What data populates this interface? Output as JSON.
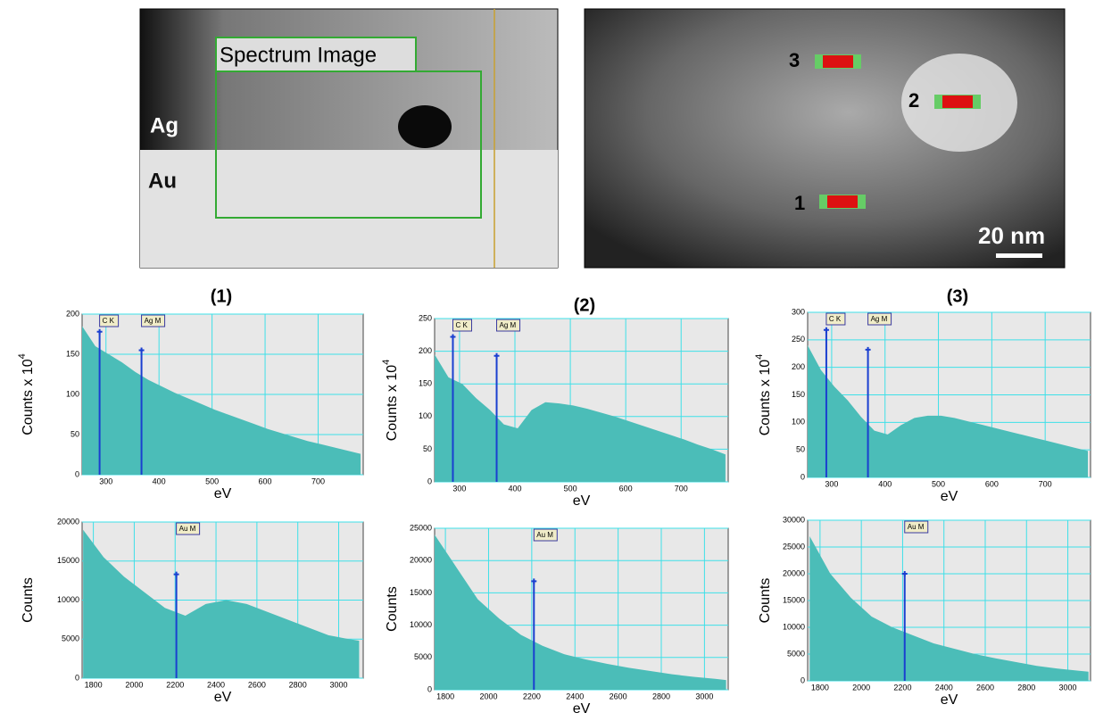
{
  "images": {
    "box_label": "Spectrum Image",
    "ag": "Ag",
    "au": "Au",
    "points": [
      "1",
      "2",
      "3"
    ],
    "scale_bar": "20 nm"
  },
  "chart_data": [
    {
      "type": "area",
      "title": "(1)",
      "ylabel": "Counts x 10",
      "ylabel_sup": "4",
      "xlabel": "eV",
      "color": "#4bbdb8",
      "grid": true,
      "x": [
        255,
        280,
        305,
        330,
        355,
        380,
        405,
        430,
        455,
        480,
        505,
        530,
        555,
        580,
        605,
        630,
        655,
        680,
        705,
        730,
        755,
        780
      ],
      "values": [
        185,
        160,
        150,
        140,
        128,
        118,
        110,
        102,
        95,
        88,
        81,
        75,
        69,
        63,
        57,
        52,
        47,
        42,
        38,
        34,
        30,
        26
      ],
      "xlim": [
        255,
        785
      ],
      "xticks": [
        300,
        400,
        500,
        600,
        700
      ],
      "ylim": [
        0,
        200
      ],
      "yticks": [
        0,
        50,
        100,
        150,
        200
      ],
      "markers": [
        {
          "label": "C K",
          "x": 288,
          "y": 178
        },
        {
          "label": "Ag M",
          "x": 367,
          "y": 155
        }
      ]
    },
    {
      "type": "area",
      "title": "(2)",
      "ylabel": "Counts x 10",
      "ylabel_sup": "4",
      "xlabel": "eV",
      "color": "#4bbdb8",
      "grid": true,
      "x": [
        255,
        280,
        305,
        330,
        355,
        380,
        405,
        430,
        455,
        480,
        505,
        530,
        555,
        580,
        605,
        630,
        655,
        680,
        705,
        730,
        755,
        780
      ],
      "values": [
        195,
        160,
        150,
        128,
        110,
        88,
        82,
        110,
        122,
        120,
        117,
        112,
        106,
        100,
        93,
        86,
        79,
        72,
        65,
        57,
        50,
        42
      ],
      "xlim": [
        255,
        785
      ],
      "xticks": [
        300,
        400,
        500,
        600,
        700
      ],
      "ylim": [
        0,
        250
      ],
      "yticks": [
        0,
        50,
        100,
        150,
        200,
        250
      ],
      "markers": [
        {
          "label": "C K",
          "x": 288,
          "y": 222
        },
        {
          "label": "Ag M",
          "x": 367,
          "y": 193
        }
      ]
    },
    {
      "type": "area",
      "title": "(3)",
      "ylabel": "Counts x 10",
      "ylabel_sup": "4",
      "xlabel": "eV",
      "color": "#4bbdb8",
      "grid": true,
      "x": [
        255,
        280,
        305,
        330,
        355,
        380,
        405,
        430,
        455,
        480,
        505,
        530,
        555,
        580,
        605,
        630,
        655,
        680,
        705,
        730,
        755,
        780
      ],
      "values": [
        240,
        195,
        165,
        140,
        110,
        85,
        78,
        95,
        108,
        112,
        112,
        108,
        102,
        96,
        90,
        84,
        78,
        72,
        66,
        60,
        54,
        48
      ],
      "xlim": [
        255,
        785
      ],
      "xticks": [
        300,
        400,
        500,
        600,
        700
      ],
      "ylim": [
        0,
        300
      ],
      "yticks": [
        0,
        50,
        100,
        150,
        200,
        250,
        300
      ],
      "markers": [
        {
          "label": "C K",
          "x": 290,
          "y": 268
        },
        {
          "label": "Ag M",
          "x": 368,
          "y": 232
        }
      ]
    },
    {
      "type": "area",
      "ylabel": "Counts",
      "xlabel": "eV",
      "color": "#4bbdb8",
      "grid": true,
      "x": [
        1750,
        1850,
        1950,
        2050,
        2150,
        2250,
        2350,
        2450,
        2550,
        2650,
        2750,
        2850,
        2950,
        3050,
        3100
      ],
      "values": [
        19000,
        15500,
        13000,
        11000,
        9000,
        8000,
        9500,
        10000,
        9500,
        8500,
        7500,
        6500,
        5500,
        5000,
        4800
      ],
      "xlim": [
        1745,
        3120
      ],
      "xticks": [
        1800,
        2000,
        2200,
        2400,
        2600,
        2800,
        3000
      ],
      "ylim": [
        0,
        20000
      ],
      "yticks": [
        0,
        5000,
        10000,
        15000,
        20000
      ],
      "markers": [
        {
          "label": "Au M",
          "x": 2206,
          "y": 13300
        }
      ]
    },
    {
      "type": "area",
      "ylabel": "Counts",
      "xlabel": "eV",
      "color": "#4bbdb8",
      "grid": true,
      "x": [
        1750,
        1850,
        1950,
        2050,
        2150,
        2250,
        2350,
        2450,
        2550,
        2650,
        2750,
        2850,
        2950,
        3050,
        3100
      ],
      "values": [
        24000,
        19000,
        14000,
        11000,
        8500,
        6800,
        5500,
        4700,
        4000,
        3400,
        2900,
        2400,
        2000,
        1700,
        1500
      ],
      "xlim": [
        1750,
        3110
      ],
      "xticks": [
        1800,
        2000,
        2200,
        2400,
        2600,
        2800,
        3000
      ],
      "ylim": [
        0,
        25000
      ],
      "yticks": [
        0,
        5000,
        10000,
        15000,
        20000,
        25000
      ],
      "markers": [
        {
          "label": "Au M",
          "x": 2210,
          "y": 16800
        }
      ]
    },
    {
      "type": "area",
      "ylabel": "Counts",
      "xlabel": "eV",
      "color": "#4bbdb8",
      "grid": true,
      "x": [
        1750,
        1850,
        1950,
        2050,
        2150,
        2250,
        2350,
        2450,
        2550,
        2650,
        2750,
        2850,
        2950,
        3050,
        3100
      ],
      "values": [
        27000,
        20000,
        15500,
        12000,
        10000,
        8500,
        7000,
        6000,
        5000,
        4200,
        3500,
        2800,
        2300,
        1900,
        1700
      ],
      "xlim": [
        1740,
        3110
      ],
      "xticks": [
        1800,
        2000,
        2200,
        2400,
        2600,
        2800,
        3000
      ],
      "ylim": [
        0,
        30000
      ],
      "yticks": [
        0,
        5000,
        10000,
        15000,
        20000,
        25000,
        30000
      ],
      "markers": [
        {
          "label": "Au M",
          "x": 2210,
          "y": 20000
        }
      ]
    }
  ]
}
